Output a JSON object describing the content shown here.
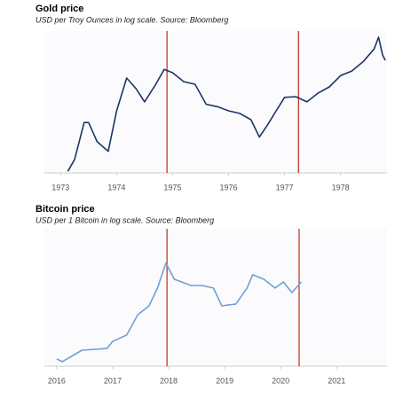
{
  "chart_data": [
    {
      "type": "line",
      "title": "Gold price",
      "subtitle": "USD per Troy Ounces in log scale. Source: Bloomberg",
      "x": [
        1973.13,
        1973.25,
        1973.42,
        1973.5,
        1973.65,
        1973.85,
        1974.0,
        1974.18,
        1974.35,
        1974.5,
        1974.7,
        1974.85,
        1975.0,
        1975.2,
        1975.4,
        1975.6,
        1975.8,
        1976.0,
        1976.2,
        1976.4,
        1976.55,
        1976.7,
        1976.85,
        1977.0,
        1977.2,
        1977.4,
        1977.6,
        1977.8,
        1978.0,
        1978.2,
        1978.4,
        1978.6,
        1978.68,
        1978.75,
        1978.8
      ],
      "series": [
        {
          "color": "#1c3466",
          "values": [
            61,
            69,
            101,
            101,
            83,
            75,
            114,
            160,
            143,
            125,
            150,
            175,
            169,
            154,
            150,
            122,
            119,
            114,
            111,
            104,
            87,
            99,
            114,
            131,
            132,
            125,
            137,
            146,
            164,
            172,
            189,
            216,
            244,
            203,
            192
          ]
        }
      ],
      "xlim": [
        1972.71,
        1978.83
      ],
      "xticks": [
        1973,
        1974,
        1975,
        1976,
        1977,
        1978
      ],
      "ylim": [
        60,
        260
      ],
      "log_scale": true,
      "vlines": [
        1974.9,
        1977.25
      ],
      "vline_color": "#c0392b"
    },
    {
      "type": "line",
      "title": "Bitcoin price",
      "subtitle": "USD per 1 Bitcoin in log scale. Source: Bloomberg",
      "x": [
        2016.0,
        2016.1,
        2016.45,
        2016.9,
        2017.0,
        2017.25,
        2017.45,
        2017.65,
        2017.8,
        2017.95,
        2018.1,
        2018.4,
        2018.6,
        2018.8,
        2018.95,
        2019.2,
        2019.4,
        2019.5,
        2019.7,
        2019.9,
        2020.05,
        2020.2,
        2020.37
      ],
      "series": [
        {
          "color": "#6f9fd8",
          "values": [
            400,
            360,
            570,
            614,
            816,
            1050,
            2390,
            3400,
            6960,
            19000,
            9950,
            7740,
            7740,
            6960,
            3400,
            3660,
            6960,
            11900,
            9950,
            6960,
            8930,
            5820,
            8930
          ]
        }
      ],
      "xlim": [
        2015.78,
        2021.9
      ],
      "xticks": [
        2016,
        2017,
        2018,
        2019,
        2020,
        2021
      ],
      "ylim": [
        300,
        76000
      ],
      "log_scale": true,
      "vlines": [
        2017.97,
        2020.33
      ],
      "vline_color": "#c0392b"
    }
  ]
}
